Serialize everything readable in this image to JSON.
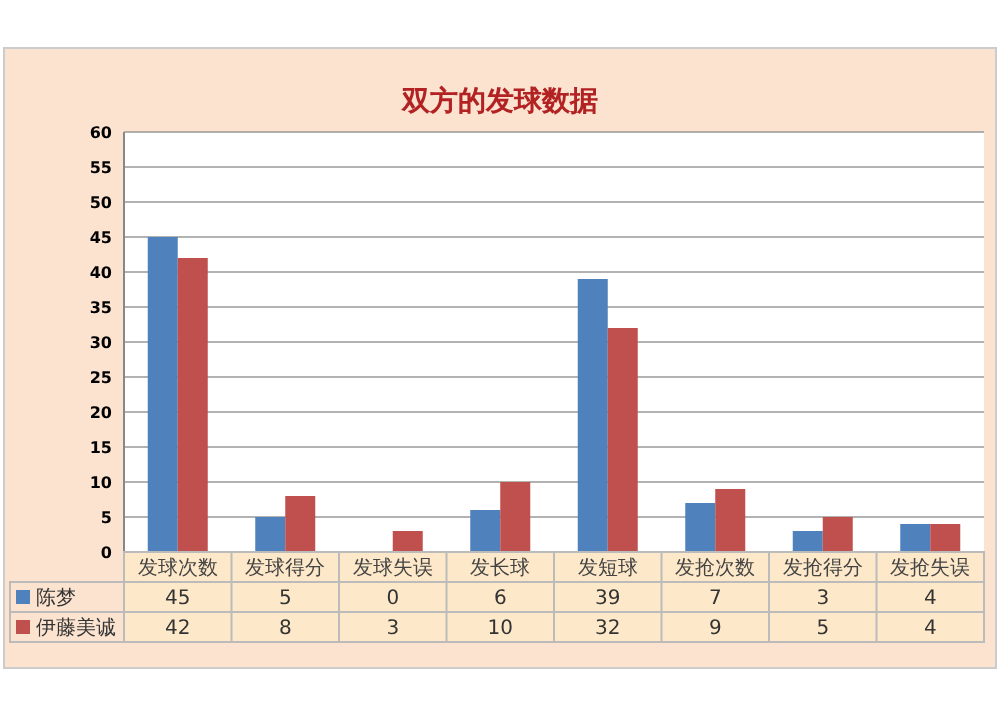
{
  "chart_data": {
    "type": "bar",
    "title": "双方的发球数据",
    "categories": [
      "发球次数",
      "发球得分",
      "发球失误",
      "发长球",
      "发短球",
      "发抢次数",
      "发抢得分",
      "发抢失误"
    ],
    "series": [
      {
        "name": "陈梦",
        "color": "#4f81bd",
        "values": [
          45,
          5,
          0,
          6,
          39,
          7,
          3,
          4
        ]
      },
      {
        "name": "伊藤美诚",
        "color": "#c0504d",
        "values": [
          42,
          8,
          3,
          10,
          32,
          9,
          5,
          4
        ]
      }
    ],
    "ylim": [
      0,
      60
    ],
    "yticks": [
      0,
      5,
      10,
      15,
      20,
      25,
      30,
      35,
      40,
      45,
      50,
      55,
      60
    ],
    "grid": "y",
    "legend": "bottom",
    "data_labels": true
  }
}
